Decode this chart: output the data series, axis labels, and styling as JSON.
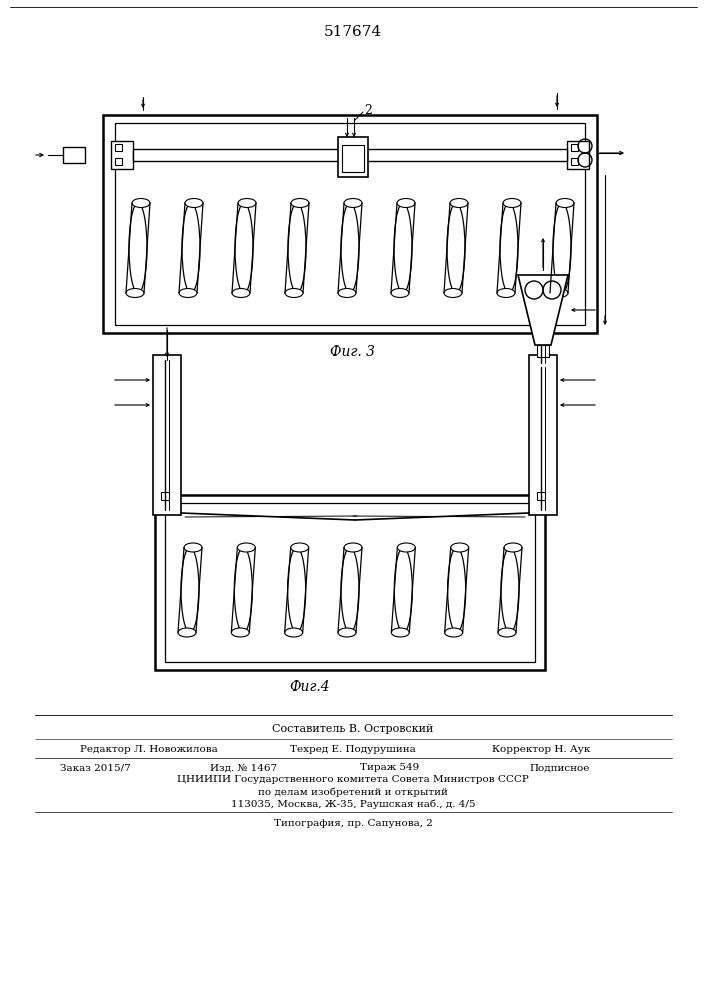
{
  "patent_number": "517674",
  "fig3_label": "Фиг. 3",
  "fig4_label": "Фиг.4",
  "footer_line1": "Составитель В. Островский",
  "footer_line2_left": "Редактор Л. Новожилова",
  "footer_line2_mid": "Техред Е. Подурушина",
  "footer_line2_right": "Корректор Н. Аук",
  "footer_line3_1": "Заказ 2015/7",
  "footer_line3_2": "Изд. № 1467",
  "footer_line3_3": "Тираж 549",
  "footer_line3_4": "Подписное",
  "footer_line4": "ЦНИИПИ Государственного комитета Совета Министров СССР",
  "footer_line5": "по делам изобретений и открытий",
  "footer_line6": "113035, Москва, Ж-35, Раушская наб., д. 4/5",
  "footer_line7": "Типография, пр. Сапунова, 2",
  "bg_color": "#ffffff",
  "line_color": "#000000"
}
